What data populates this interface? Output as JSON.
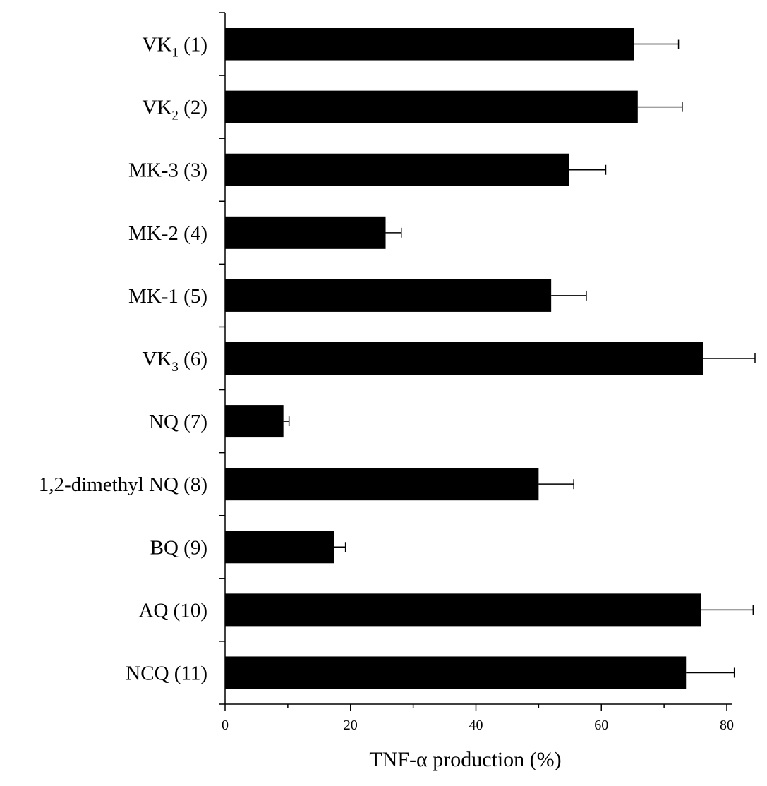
{
  "chart_data": {
    "type": "bar",
    "orientation": "horizontal",
    "categories": [
      {
        "base": "VK",
        "sub": "1",
        "suffix": " (1)"
      },
      {
        "base": "VK",
        "sub": "2",
        "suffix": " (2)"
      },
      {
        "base": "MK-3 (3)",
        "sub": "",
        "suffix": ""
      },
      {
        "base": "MK-2 (4)",
        "sub": "",
        "suffix": ""
      },
      {
        "base": "MK-1 (5)",
        "sub": "",
        "suffix": ""
      },
      {
        "base": "VK",
        "sub": "3",
        "suffix": " (6)"
      },
      {
        "base": "NQ (7)",
        "sub": "",
        "suffix": ""
      },
      {
        "base": "1,2-dimethyl NQ (8)",
        "sub": "",
        "suffix": ""
      },
      {
        "base": "BQ (9)",
        "sub": "",
        "suffix": ""
      },
      {
        "base": "AQ (10)",
        "sub": "",
        "suffix": ""
      },
      {
        "base": "NCQ (11)",
        "sub": "",
        "suffix": ""
      }
    ],
    "values": [
      65.2,
      65.8,
      54.8,
      25.6,
      52.0,
      76.2,
      9.3,
      50.0,
      17.4,
      75.9,
      73.5
    ],
    "errors": [
      7.1,
      7.1,
      5.9,
      2.5,
      5.6,
      8.3,
      0.9,
      5.6,
      1.8,
      8.3,
      7.7
    ],
    "xlabel": "TNF-α production (%)",
    "xlim": [
      0,
      80
    ],
    "major_ticks": [
      0,
      20,
      40,
      60,
      80
    ],
    "minor_ticks": [
      10,
      30,
      50,
      70
    ],
    "grid": false,
    "legend": "none",
    "bar_color": "#000000"
  }
}
